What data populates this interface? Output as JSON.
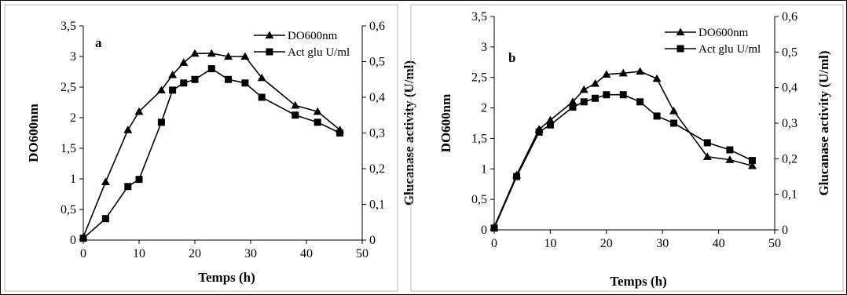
{
  "chart_data": [
    {
      "type": "line",
      "panel_label": "a",
      "xlabel": "Temps (h)",
      "ylabel": "DO600nm",
      "y2label": "Glucanase activity  (U/ml)",
      "xlim": [
        0,
        50
      ],
      "ylim": [
        0,
        3.5
      ],
      "y2lim": [
        0,
        0.6
      ],
      "xticks": [
        "0",
        "10",
        "20",
        "30",
        "40",
        "50"
      ],
      "yticks": [
        "0",
        "0,5",
        "1",
        "1,5",
        "2",
        "2,5",
        "3",
        "3,5"
      ],
      "y2ticks": [
        "0",
        "0,1",
        "0,2",
        "0,3",
        "0,4",
        "0,5",
        "0,6"
      ],
      "grid": false,
      "legend_position": "top-right",
      "series": [
        {
          "name": "DO600nm",
          "axis": "left",
          "marker": "triangle",
          "x": [
            0,
            4,
            8,
            10,
            14,
            16,
            18,
            20,
            23,
            26,
            29,
            32,
            38,
            42,
            46
          ],
          "y": [
            0.05,
            0.95,
            1.8,
            2.1,
            2.45,
            2.7,
            2.9,
            3.05,
            3.05,
            3.0,
            3.0,
            2.65,
            2.2,
            2.1,
            1.8
          ]
        },
        {
          "name": "Act glu U/ml",
          "axis": "right",
          "marker": "square",
          "x": [
            0,
            4,
            8,
            10,
            14,
            16,
            18,
            20,
            23,
            26,
            29,
            32,
            38,
            42,
            46
          ],
          "y": [
            0.005,
            0.06,
            0.15,
            0.17,
            0.33,
            0.42,
            0.44,
            0.45,
            0.48,
            0.45,
            0.44,
            0.4,
            0.35,
            0.33,
            0.3
          ]
        }
      ]
    },
    {
      "type": "line",
      "panel_label": "b",
      "xlabel": "Temps (h)",
      "ylabel": "DO600nm",
      "y2label": "Glucanase activity  (U/ml)",
      "xlim": [
        0,
        50
      ],
      "ylim": [
        0,
        3.5
      ],
      "y2lim": [
        0,
        0.6
      ],
      "xticks": [
        "0",
        "10",
        "20",
        "30",
        "40",
        "50"
      ],
      "yticks": [
        "0",
        "0,5",
        "1",
        "1,5",
        "2",
        "2,5",
        "3",
        "3,5"
      ],
      "y2ticks": [
        "0",
        "0,1",
        "0,2",
        "0,3",
        "0,4",
        "0,5",
        "0,6"
      ],
      "grid": false,
      "legend_position": "top-right",
      "series": [
        {
          "name": "DO600nm",
          "axis": "left",
          "marker": "triangle",
          "x": [
            0,
            4,
            8,
            10,
            14,
            16,
            18,
            20,
            23,
            26,
            29,
            32,
            38,
            42,
            46
          ],
          "y": [
            0.05,
            0.9,
            1.65,
            1.8,
            2.1,
            2.3,
            2.4,
            2.55,
            2.57,
            2.6,
            2.48,
            1.95,
            1.2,
            1.15,
            1.05
          ]
        },
        {
          "name": "Act glu U/ml",
          "axis": "right",
          "marker": "square",
          "x": [
            0,
            4,
            8,
            10,
            14,
            16,
            18,
            20,
            23,
            26,
            29,
            32,
            38,
            42,
            46
          ],
          "y": [
            0.005,
            0.15,
            0.275,
            0.295,
            0.345,
            0.36,
            0.37,
            0.38,
            0.38,
            0.36,
            0.32,
            0.3,
            0.245,
            0.225,
            0.195
          ]
        }
      ]
    }
  ]
}
